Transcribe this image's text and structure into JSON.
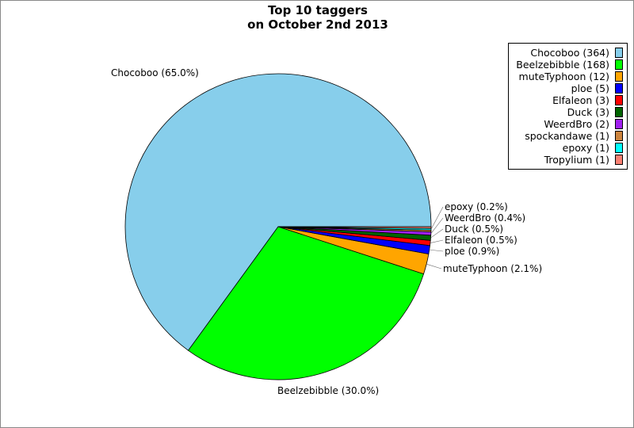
{
  "chart_data": {
    "type": "pie",
    "title": "Top 10 taggers\non October 2nd 2013",
    "title_lines": [
      "Top 10 taggers",
      "on October 2nd 2013"
    ],
    "slices": [
      {
        "name": "Chocoboo",
        "value": 364,
        "legend": "Chocoboo (364)",
        "label": "Chocoboo (65.0%)",
        "color": "#87CEEB"
      },
      {
        "name": "Beelzebibble",
        "value": 168,
        "legend": "Beelzebibble (168)",
        "label": "Beelzebibble (30.0%)",
        "color": "#00FF00"
      },
      {
        "name": "muteTyphoon",
        "value": 12,
        "legend": "muteTyphoon (12)",
        "label": "muteTyphoon (2.1%)",
        "color": "#FFA500"
      },
      {
        "name": "ploe",
        "value": 5,
        "legend": "ploe (5)",
        "label": "ploe (0.9%)",
        "color": "#0000FF"
      },
      {
        "name": "Elfaleon",
        "value": 3,
        "legend": "Elfaleon (3)",
        "label": "Elfaleon (0.5%)",
        "color": "#FF0000"
      },
      {
        "name": "Duck",
        "value": 3,
        "legend": "Duck (3)",
        "label": "Duck (0.5%)",
        "color": "#006400"
      },
      {
        "name": "WeerdBro",
        "value": 2,
        "legend": "WeerdBro (2)",
        "label": "WeerdBro (0.4%)",
        "color": "#A020F0"
      },
      {
        "name": "spockandawe",
        "value": 1,
        "legend": "spockandawe (1)",
        "label": "",
        "color": "#CD853F"
      },
      {
        "name": "epoxy",
        "value": 1,
        "legend": "epoxy (1)",
        "label": "epoxy (0.2%)",
        "color": "#00FFFF"
      },
      {
        "name": "Tropylium",
        "value": 1,
        "legend": "Tropylium (1)",
        "label": "",
        "color": "#FA8072"
      }
    ],
    "legend_position": "top-right"
  }
}
